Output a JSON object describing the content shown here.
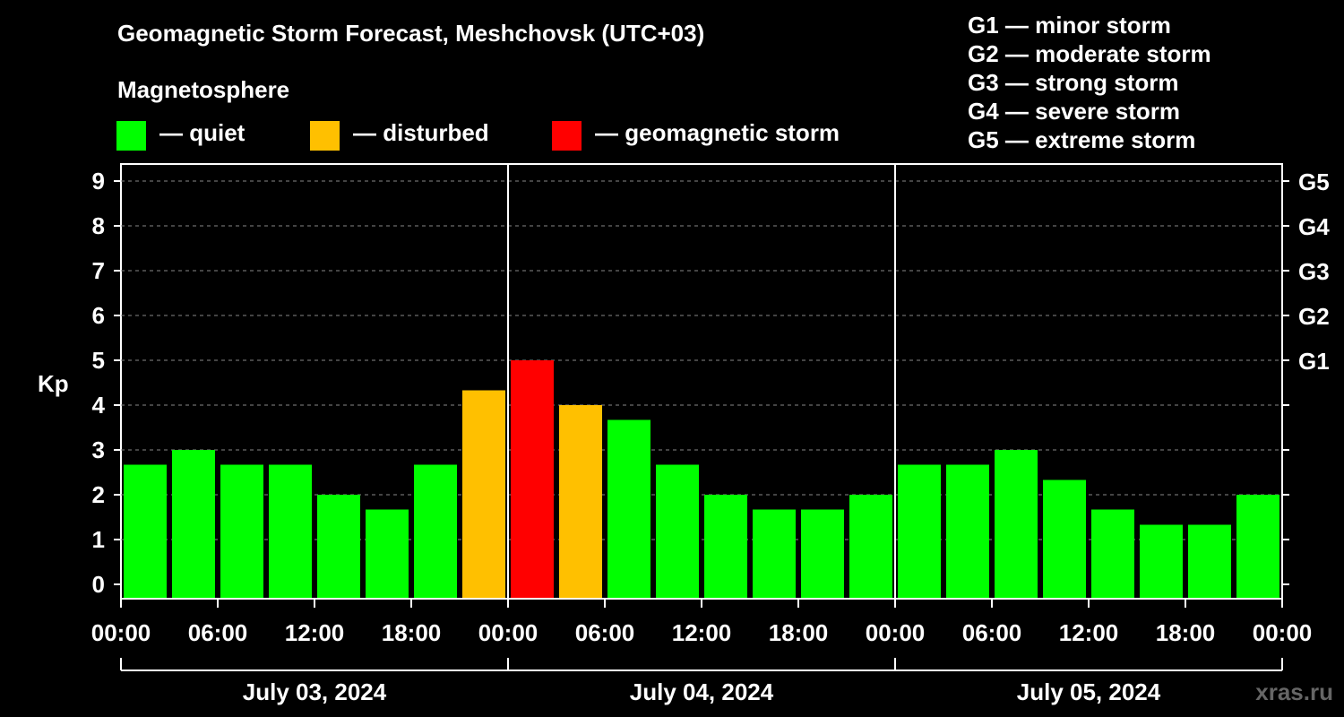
{
  "title": "Geomagnetic Storm Forecast, Meshchovsk (UTC+03)",
  "subtitle": "Magnetosphere",
  "legend": [
    {
      "label": "— quiet",
      "color": "#00ff00"
    },
    {
      "label": "— disturbed",
      "color": "#ffc000"
    },
    {
      "label": "— geomagnetic storm",
      "color": "#ff0000"
    }
  ],
  "storm_levels": [
    "G1 — minor storm",
    "G2 — moderate storm",
    "G3 — strong storm",
    "G4 — severe storm",
    "G5 — extreme storm"
  ],
  "watermark": "xras.ru",
  "chart_data": {
    "type": "bar",
    "ylabel": "Kp",
    "ylim": [
      0,
      9
    ],
    "y_ticks": [
      "0",
      "1",
      "2",
      "3",
      "4",
      "5",
      "6",
      "7",
      "8",
      "9"
    ],
    "right_ticks": [
      {
        "value": 5,
        "label": "G1"
      },
      {
        "value": 6,
        "label": "G2"
      },
      {
        "value": 7,
        "label": "G3"
      },
      {
        "value": 8,
        "label": "G4"
      },
      {
        "value": 9,
        "label": "G5"
      }
    ],
    "x_ticks": [
      "00:00",
      "06:00",
      "12:00",
      "18:00",
      "00:00",
      "06:00",
      "12:00",
      "18:00",
      "00:00",
      "06:00",
      "12:00",
      "18:00",
      "00:00"
    ],
    "days": [
      "July 03, 2024",
      "July 04, 2024",
      "July 05, 2024"
    ],
    "interval_hours": 3,
    "values": [
      2.67,
      3.0,
      2.67,
      2.67,
      2.0,
      1.67,
      2.67,
      4.33,
      5.0,
      4.0,
      3.67,
      2.67,
      2.0,
      1.67,
      1.67,
      2.0,
      2.67,
      2.67,
      3.0,
      2.33,
      1.67,
      1.33,
      1.33,
      2.0
    ],
    "colors": {
      "quiet": "#00ff00",
      "disturbed": "#ffc000",
      "storm": "#ff0000"
    },
    "thresholds": {
      "disturbed": 4,
      "storm": 5
    },
    "grid": true
  }
}
